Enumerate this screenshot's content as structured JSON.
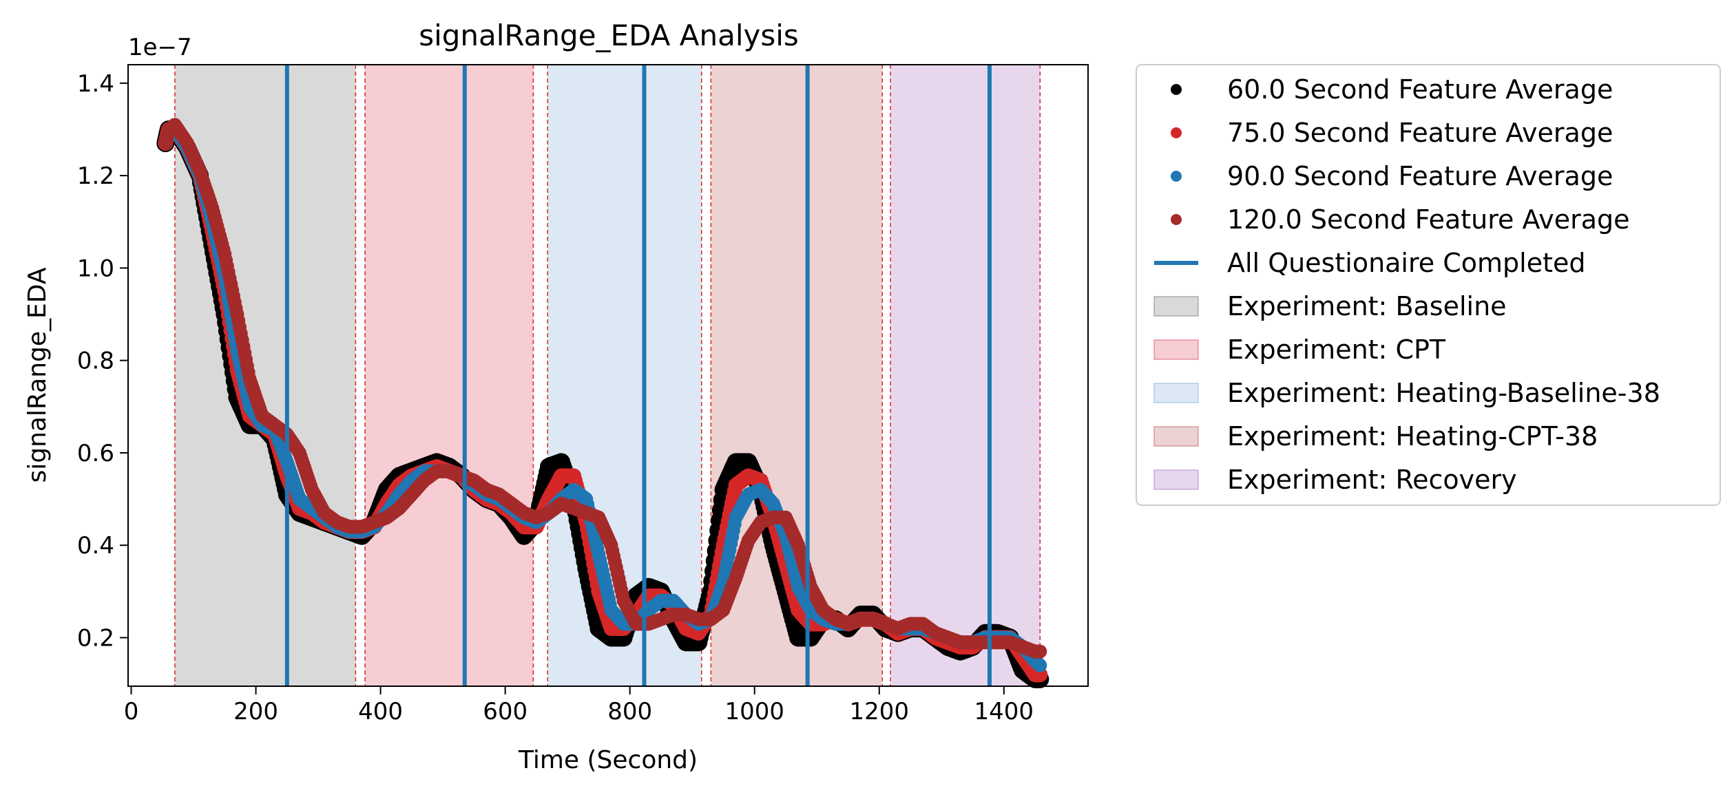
{
  "chart_data": {
    "type": "scatter",
    "title": "signalRange_EDA Analysis",
    "xlabel": "Time (Second)",
    "ylabel": "signalRange_EDA",
    "y_offset_label": "1e−7",
    "xlim": [
      -5,
      1535
    ],
    "ylim": [
      0.095,
      1.44
    ],
    "x_ticks": [
      0,
      200,
      400,
      600,
      800,
      1000,
      1200,
      1400
    ],
    "x_tick_labels": [
      "0",
      "200",
      "400",
      "600",
      "800",
      "1000",
      "1200",
      "1400"
    ],
    "y_ticks": [
      0.2,
      0.4,
      0.6,
      0.8,
      1.0,
      1.2,
      1.4
    ],
    "y_tick_labels": [
      "0.2",
      "0.4",
      "0.6",
      "0.8",
      "1.0",
      "1.2",
      "1.4"
    ],
    "grid": false,
    "legend_position": "outside-right-top",
    "phases": [
      {
        "label": "Experiment: Baseline",
        "start": 70,
        "end": 360,
        "color": "#808080"
      },
      {
        "label": "Experiment: CPT",
        "start": 375,
        "end": 645,
        "color": "#e05a6a"
      },
      {
        "label": "Experiment: Heating-Baseline-38",
        "start": 668,
        "end": 915,
        "color": "#8cb4d8"
      },
      {
        "label": "Experiment: Heating-CPT-38",
        "start": 930,
        "end": 1205,
        "color": "#c06a6a"
      },
      {
        "label": "Experiment: Recovery",
        "start": 1218,
        "end": 1458,
        "color": "#b27cc0"
      }
    ],
    "phase_boundaries": [
      70,
      360,
      375,
      645,
      668,
      915,
      930,
      1205,
      1218,
      1458
    ],
    "questionnaire_completed": [
      250,
      535,
      823,
      1085,
      1377
    ],
    "series": [
      {
        "name": "60.0 Second Feature Average",
        "color": "#000000",
        "x": [
          55,
          60,
          70,
          90,
          110,
          130,
          150,
          170,
          190,
          210,
          230,
          250,
          270,
          290,
          310,
          330,
          350,
          370,
          390,
          410,
          430,
          450,
          470,
          490,
          510,
          530,
          550,
          570,
          590,
          610,
          630,
          650,
          670,
          690,
          710,
          730,
          750,
          770,
          790,
          810,
          830,
          850,
          870,
          890,
          910,
          930,
          950,
          970,
          990,
          1010,
          1030,
          1050,
          1070,
          1090,
          1110,
          1130,
          1150,
          1170,
          1190,
          1210,
          1230,
          1250,
          1270,
          1290,
          1310,
          1330,
          1350,
          1370,
          1390,
          1410,
          1430,
          1450,
          1458
        ],
        "y": [
          1.27,
          1.3,
          1.3,
          1.26,
          1.2,
          1.05,
          0.9,
          0.72,
          0.66,
          0.66,
          0.63,
          0.51,
          0.47,
          0.46,
          0.45,
          0.44,
          0.43,
          0.42,
          0.45,
          0.52,
          0.55,
          0.56,
          0.57,
          0.58,
          0.57,
          0.55,
          0.52,
          0.5,
          0.49,
          0.46,
          0.42,
          0.45,
          0.57,
          0.58,
          0.5,
          0.35,
          0.22,
          0.2,
          0.2,
          0.29,
          0.31,
          0.3,
          0.24,
          0.19,
          0.19,
          0.3,
          0.52,
          0.58,
          0.58,
          0.52,
          0.4,
          0.3,
          0.2,
          0.2,
          0.24,
          0.24,
          0.22,
          0.25,
          0.25,
          0.22,
          0.21,
          0.22,
          0.22,
          0.2,
          0.18,
          0.17,
          0.18,
          0.21,
          0.21,
          0.2,
          0.13,
          0.11,
          0.11
        ]
      },
      {
        "name": "75.0 Second Feature Average",
        "color": "#d62728",
        "x": [
          55,
          60,
          70,
          90,
          110,
          130,
          150,
          170,
          190,
          210,
          230,
          250,
          270,
          290,
          310,
          330,
          350,
          370,
          390,
          410,
          430,
          450,
          470,
          490,
          510,
          530,
          550,
          570,
          590,
          610,
          630,
          650,
          670,
          690,
          710,
          730,
          750,
          770,
          790,
          810,
          830,
          850,
          870,
          890,
          910,
          930,
          950,
          970,
          990,
          1010,
          1030,
          1050,
          1070,
          1090,
          1110,
          1130,
          1150,
          1170,
          1190,
          1210,
          1230,
          1250,
          1270,
          1290,
          1310,
          1330,
          1350,
          1370,
          1390,
          1410,
          1430,
          1450,
          1458
        ],
        "y": [
          1.27,
          1.3,
          1.3,
          1.26,
          1.2,
          1.08,
          0.95,
          0.78,
          0.68,
          0.66,
          0.64,
          0.55,
          0.48,
          0.47,
          0.45,
          0.44,
          0.43,
          0.43,
          0.44,
          0.49,
          0.53,
          0.55,
          0.56,
          0.57,
          0.56,
          0.55,
          0.52,
          0.5,
          0.49,
          0.47,
          0.44,
          0.44,
          0.5,
          0.55,
          0.55,
          0.45,
          0.3,
          0.22,
          0.22,
          0.25,
          0.29,
          0.29,
          0.27,
          0.22,
          0.21,
          0.25,
          0.4,
          0.53,
          0.55,
          0.54,
          0.46,
          0.36,
          0.26,
          0.23,
          0.23,
          0.24,
          0.23,
          0.24,
          0.24,
          0.23,
          0.21,
          0.22,
          0.22,
          0.2,
          0.19,
          0.18,
          0.18,
          0.2,
          0.2,
          0.2,
          0.16,
          0.12,
          0.12
        ]
      },
      {
        "name": "90.0 Second Feature Average",
        "color": "#1f77b4",
        "x": [
          55,
          60,
          70,
          90,
          110,
          130,
          150,
          170,
          190,
          210,
          230,
          250,
          270,
          290,
          310,
          330,
          350,
          370,
          390,
          410,
          430,
          450,
          470,
          490,
          510,
          530,
          550,
          570,
          590,
          610,
          630,
          650,
          670,
          690,
          710,
          730,
          750,
          770,
          790,
          810,
          830,
          850,
          870,
          890,
          910,
          930,
          950,
          970,
          990,
          1010,
          1030,
          1050,
          1070,
          1090,
          1110,
          1130,
          1150,
          1170,
          1190,
          1210,
          1230,
          1250,
          1270,
          1290,
          1310,
          1330,
          1350,
          1370,
          1390,
          1410,
          1430,
          1450,
          1458
        ],
        "y": [
          1.27,
          1.3,
          1.3,
          1.26,
          1.2,
          1.1,
          0.98,
          0.82,
          0.7,
          0.66,
          0.65,
          0.58,
          0.5,
          0.48,
          0.46,
          0.44,
          0.43,
          0.43,
          0.44,
          0.47,
          0.51,
          0.54,
          0.56,
          0.56,
          0.56,
          0.55,
          0.53,
          0.51,
          0.5,
          0.48,
          0.46,
          0.45,
          0.47,
          0.5,
          0.52,
          0.5,
          0.38,
          0.26,
          0.23,
          0.23,
          0.26,
          0.28,
          0.28,
          0.25,
          0.23,
          0.24,
          0.32,
          0.46,
          0.51,
          0.52,
          0.49,
          0.42,
          0.31,
          0.26,
          0.24,
          0.23,
          0.23,
          0.24,
          0.24,
          0.23,
          0.22,
          0.22,
          0.22,
          0.21,
          0.2,
          0.19,
          0.19,
          0.2,
          0.2,
          0.2,
          0.18,
          0.15,
          0.14
        ]
      },
      {
        "name": "120.0 Second Feature Average",
        "color": "#a52a2a",
        "x": [
          55,
          60,
          70,
          90,
          110,
          130,
          150,
          170,
          190,
          210,
          230,
          250,
          270,
          290,
          310,
          330,
          350,
          370,
          390,
          410,
          430,
          450,
          470,
          490,
          510,
          530,
          550,
          570,
          590,
          610,
          630,
          650,
          670,
          690,
          710,
          730,
          750,
          770,
          790,
          810,
          830,
          850,
          870,
          890,
          910,
          930,
          950,
          970,
          990,
          1010,
          1030,
          1050,
          1070,
          1090,
          1110,
          1130,
          1150,
          1170,
          1190,
          1210,
          1230,
          1250,
          1270,
          1290,
          1310,
          1330,
          1350,
          1370,
          1390,
          1410,
          1430,
          1450,
          1458
        ],
        "y": [
          1.27,
          1.3,
          1.31,
          1.27,
          1.21,
          1.13,
          1.03,
          0.9,
          0.76,
          0.68,
          0.66,
          0.64,
          0.6,
          0.52,
          0.47,
          0.45,
          0.44,
          0.44,
          0.45,
          0.46,
          0.48,
          0.51,
          0.54,
          0.56,
          0.56,
          0.55,
          0.54,
          0.52,
          0.51,
          0.49,
          0.47,
          0.46,
          0.47,
          0.49,
          0.48,
          0.47,
          0.46,
          0.4,
          0.28,
          0.23,
          0.23,
          0.24,
          0.25,
          0.25,
          0.24,
          0.24,
          0.26,
          0.33,
          0.41,
          0.45,
          0.46,
          0.46,
          0.4,
          0.31,
          0.26,
          0.24,
          0.23,
          0.24,
          0.24,
          0.23,
          0.22,
          0.23,
          0.23,
          0.21,
          0.2,
          0.19,
          0.19,
          0.19,
          0.19,
          0.19,
          0.18,
          0.17,
          0.17
        ]
      }
    ],
    "legend": {
      "entries": [
        {
          "label": "60.0 Second Feature Average",
          "kind": "marker",
          "color": "#000000"
        },
        {
          "label": "75.0 Second Feature Average",
          "kind": "marker",
          "color": "#d62728"
        },
        {
          "label": "90.0 Second Feature Average",
          "kind": "marker",
          "color": "#1f77b4"
        },
        {
          "label": "120.0 Second Feature Average",
          "kind": "marker",
          "color": "#a52a2a"
        },
        {
          "label": "All Questionaire Completed",
          "kind": "line",
          "color": "#1f77b4"
        },
        {
          "label": "Experiment: Baseline",
          "kind": "patch",
          "color": "#808080"
        },
        {
          "label": "Experiment: CPT",
          "kind": "patch",
          "color": "#e05a6a"
        },
        {
          "label": "Experiment: Heating-Baseline-38",
          "kind": "patch",
          "color": "#8cb4d8"
        },
        {
          "label": "Experiment: Heating-CPT-38",
          "kind": "patch",
          "color": "#c06a6a"
        },
        {
          "label": "Experiment: Recovery",
          "kind": "patch",
          "color": "#b27cc0"
        }
      ]
    }
  }
}
